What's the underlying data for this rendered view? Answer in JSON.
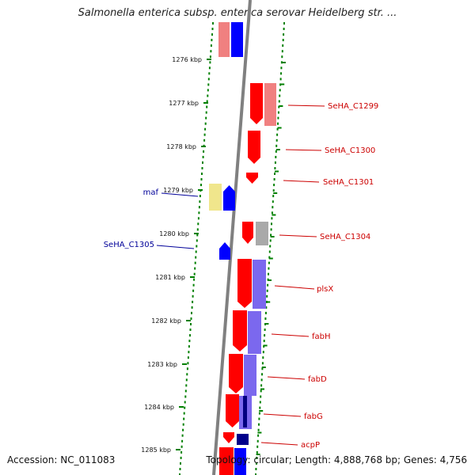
{
  "title": "Salmonella enterica subsp. enterica serovar Heidelberg str. ...",
  "footer": {
    "accession": "Accession: NC_011083",
    "topology": "Topology: circular; Length: 4,888,768 bp; Genes: 4,756"
  },
  "colors": {
    "forward_cds": "#ff0000",
    "reverse_cds": "#0000ff",
    "backbone": "#808080",
    "gc_dots": "#008000",
    "label_forward": "#cc0000",
    "label_reverse": "#000099",
    "pink_feature": "#f08080",
    "purple_feature": "#7b68ee",
    "yellow_feature": "#f0e68c",
    "gray_feature": "#a9a9a9"
  },
  "map": {
    "ticks": [
      "1276 kbp",
      "1277 kbp",
      "1278 kbp",
      "1279 kbp",
      "1280 kbp",
      "1281 kbp",
      "1282 kbp",
      "1283 kbp",
      "1284 kbp",
      "1285 kbp"
    ],
    "genes_forward": [
      {
        "name": "SeHA_C1299"
      },
      {
        "name": "SeHA_C1300"
      },
      {
        "name": "SeHA_C1301"
      },
      {
        "name": "SeHA_C1304"
      },
      {
        "name": "plsX"
      },
      {
        "name": "fabH"
      },
      {
        "name": "fabD"
      },
      {
        "name": "fabG"
      },
      {
        "name": "acpP"
      }
    ],
    "genes_reverse": [
      {
        "name": "maf"
      },
      {
        "name": "SeHA_C1305"
      }
    ]
  }
}
